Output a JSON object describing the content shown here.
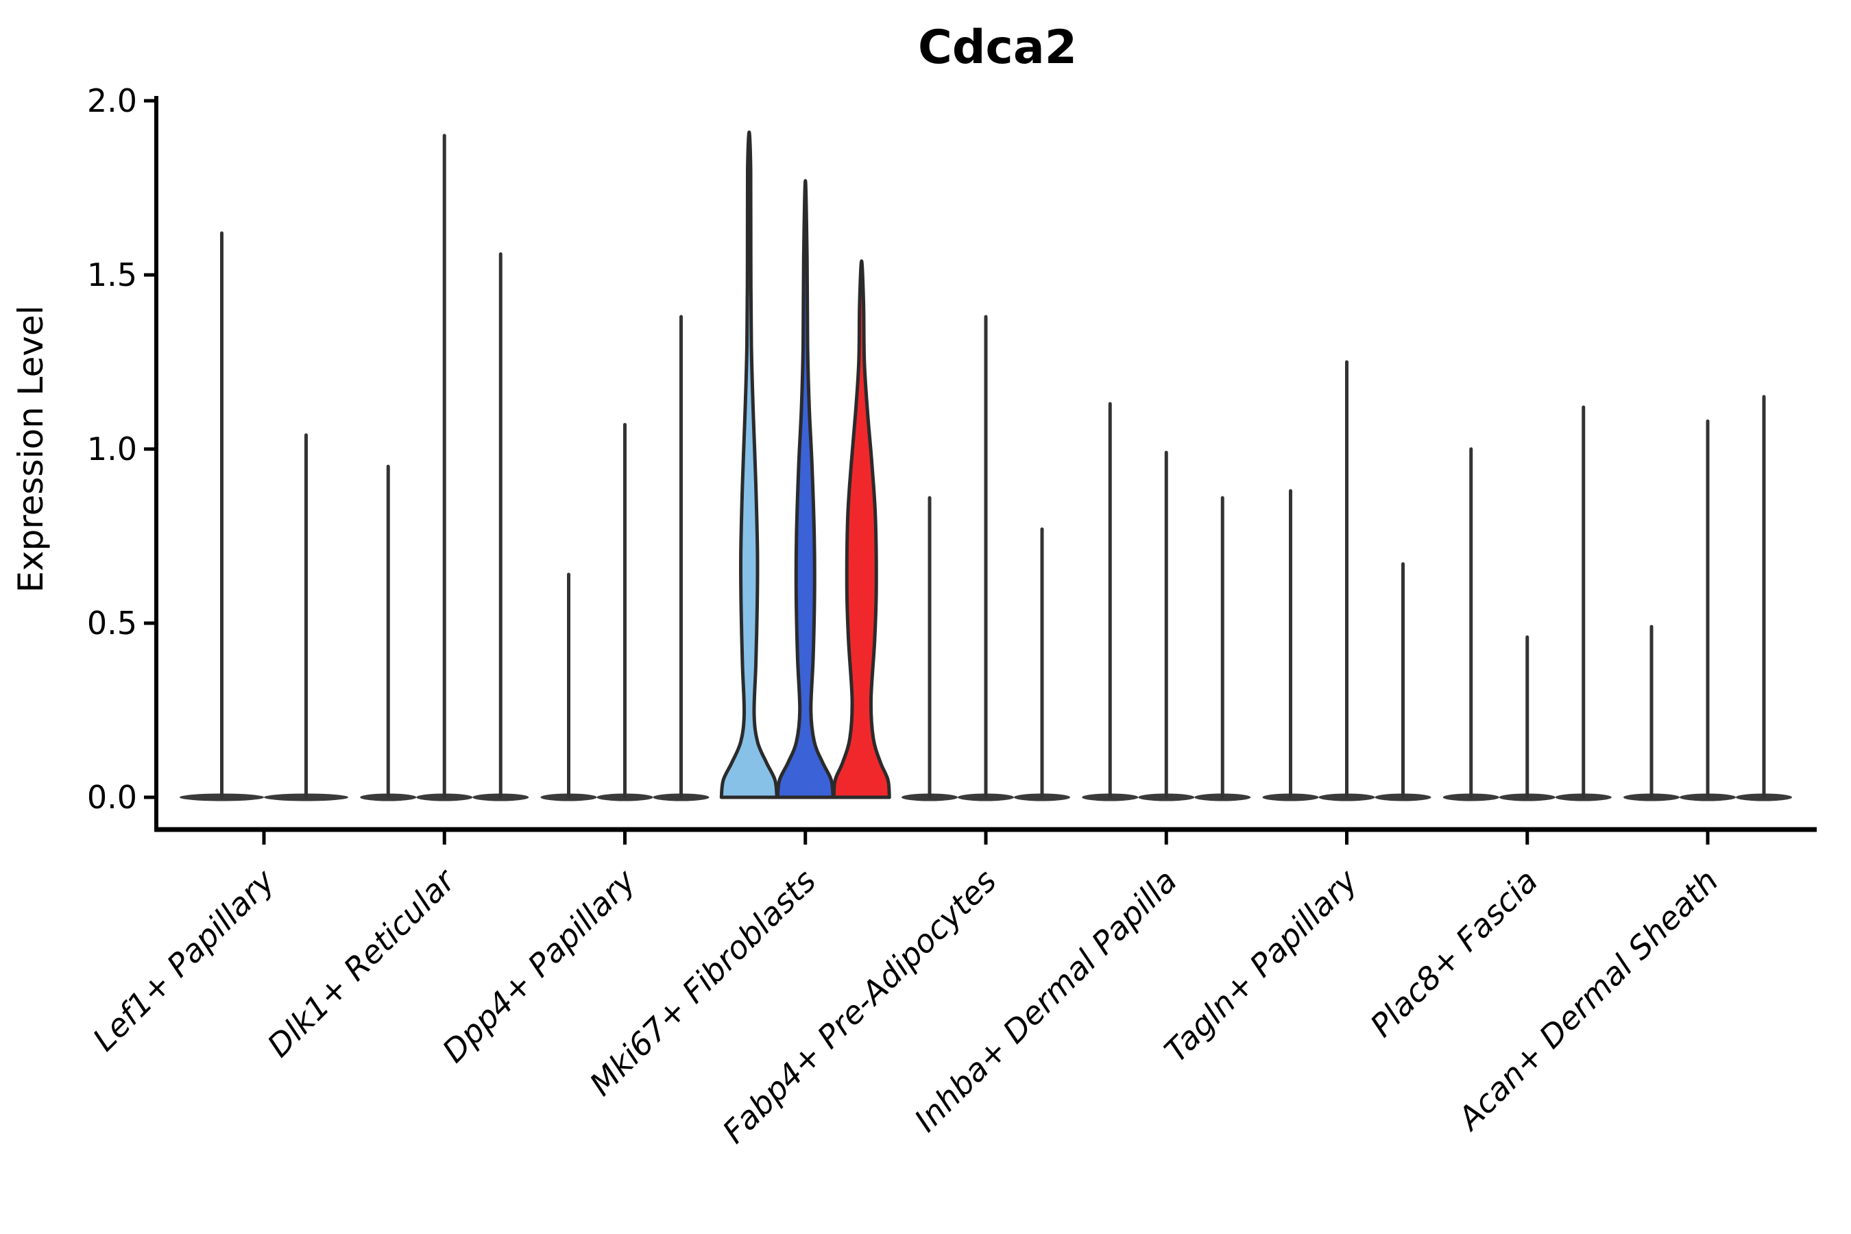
{
  "chart_data": {
    "type": "violin",
    "title": "Cdca2",
    "ylabel": "Expression Level",
    "ylim": [
      0.0,
      2.0
    ],
    "ytick_labels": [
      "0.0",
      "0.5",
      "1.0",
      "1.5",
      "2.0"
    ],
    "ytick_values": [
      0.0,
      0.5,
      1.0,
      1.5,
      2.0
    ],
    "grid": false,
    "legend": "none",
    "x_label_rotation_deg": 45,
    "colors": {
      "spike": "#333333",
      "baseline": "#3a3a3a",
      "outline": "#2b2b2b",
      "axis": "#000000",
      "split_light_blue": "#87C1E8",
      "split_blue": "#3B62D6",
      "split_red": "#F1282B"
    },
    "categories": [
      {
        "label": "Lef1+ Papillary",
        "violins": [
          {
            "style": "spike",
            "max": 1.62
          },
          {
            "style": "spike",
            "max": 1.04
          }
        ]
      },
      {
        "label": "Dlk1+ Reticular",
        "violins": [
          {
            "style": "spike",
            "max": 0.95
          },
          {
            "style": "spike",
            "max": 1.9
          },
          {
            "style": "spike",
            "max": 1.56
          }
        ]
      },
      {
        "label": "Dpp4+ Papillary",
        "violins": [
          {
            "style": "spike",
            "max": 0.64
          },
          {
            "style": "spike",
            "max": 1.07
          },
          {
            "style": "spike",
            "max": 1.38
          }
        ]
      },
      {
        "label": "Mki67+ Fibroblasts",
        "violins": [
          {
            "style": "violin",
            "max": 1.91,
            "fill": "#87C1E8",
            "profile": [
              [
                0.0,
                1.0
              ],
              [
                0.05,
                0.93
              ],
              [
                0.1,
                0.62
              ],
              [
                0.16,
                0.3
              ],
              [
                0.24,
                0.18
              ],
              [
                0.38,
                0.24
              ],
              [
                0.55,
                0.29
              ],
              [
                0.7,
                0.3
              ],
              [
                0.9,
                0.24
              ],
              [
                1.1,
                0.15
              ],
              [
                1.3,
                0.08
              ],
              [
                1.55,
                0.06
              ],
              [
                1.8,
                0.055
              ],
              [
                1.91,
                0.0
              ]
            ]
          },
          {
            "style": "violin",
            "max": 1.77,
            "fill": "#3B62D6",
            "profile": [
              [
                0.0,
                1.0
              ],
              [
                0.05,
                0.93
              ],
              [
                0.1,
                0.62
              ],
              [
                0.16,
                0.32
              ],
              [
                0.25,
                0.2
              ],
              [
                0.4,
                0.28
              ],
              [
                0.58,
                0.33
              ],
              [
                0.75,
                0.32
              ],
              [
                0.95,
                0.24
              ],
              [
                1.12,
                0.14
              ],
              [
                1.3,
                0.08
              ],
              [
                1.55,
                0.06
              ],
              [
                1.77,
                0.0
              ]
            ]
          },
          {
            "style": "violin",
            "max": 1.54,
            "fill": "#F1282B",
            "profile": [
              [
                0.0,
                1.0
              ],
              [
                0.05,
                0.95
              ],
              [
                0.1,
                0.68
              ],
              [
                0.17,
                0.42
              ],
              [
                0.28,
                0.34
              ],
              [
                0.45,
                0.47
              ],
              [
                0.6,
                0.53
              ],
              [
                0.8,
                0.5
              ],
              [
                0.95,
                0.38
              ],
              [
                1.1,
                0.22
              ],
              [
                1.25,
                0.1
              ],
              [
                1.42,
                0.07
              ],
              [
                1.54,
                0.0
              ]
            ]
          }
        ]
      },
      {
        "label": "Fabp4+ Pre-Adipocytes",
        "violins": [
          {
            "style": "spike",
            "max": 0.86
          },
          {
            "style": "spike",
            "max": 1.38
          },
          {
            "style": "spike",
            "max": 0.77
          }
        ]
      },
      {
        "label": "Inhba+ Dermal Papilla",
        "violins": [
          {
            "style": "spike",
            "max": 1.13
          },
          {
            "style": "spike",
            "max": 0.99
          },
          {
            "style": "spike",
            "max": 0.86
          }
        ]
      },
      {
        "label": "Tagln+ Papillary",
        "violins": [
          {
            "style": "spike",
            "max": 0.88
          },
          {
            "style": "spike",
            "max": 1.25
          },
          {
            "style": "spike",
            "max": 0.67
          }
        ]
      },
      {
        "label": "Plac8+ Fascia",
        "violins": [
          {
            "style": "spike",
            "max": 1.0
          },
          {
            "style": "spike",
            "max": 0.46
          },
          {
            "style": "spike",
            "max": 1.12
          }
        ]
      },
      {
        "label": "Acan+ Dermal Sheath",
        "violins": [
          {
            "style": "spike",
            "max": 0.49
          },
          {
            "style": "spike",
            "max": 1.08
          },
          {
            "style": "spike",
            "max": 1.15
          }
        ]
      }
    ]
  }
}
